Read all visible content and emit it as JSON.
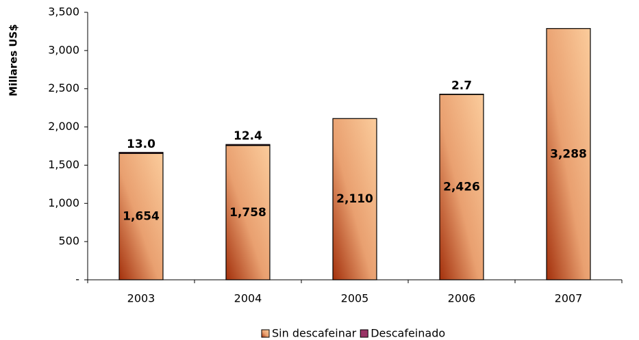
{
  "chart_data": {
    "type": "stacked_bar",
    "y_label": "Millares US$",
    "categories": [
      "2003",
      "2004",
      "2005",
      "2006",
      "2007"
    ],
    "series": [
      {
        "name": "Sin descafeinar",
        "color": "#f9c590",
        "values": [
          1654,
          1758,
          2110,
          2426,
          3288
        ],
        "value_labels": [
          "1,654",
          "1,758",
          "2,110",
          "2,426",
          "3,288"
        ]
      },
      {
        "name": "Descafeinado",
        "color": "#993366",
        "values": [
          13.0,
          12.4,
          null,
          2.7,
          null
        ],
        "value_labels": [
          "13.0",
          "12.4",
          null,
          "2.7",
          null
        ]
      }
    ],
    "ylim": [
      0,
      3500
    ],
    "yticks": [
      {
        "value": 0,
        "label": "-"
      },
      500,
      {
        "value": 1000,
        "label": "1,000"
      },
      {
        "value": 1500,
        "label": "1,500"
      },
      {
        "value": 2000,
        "label": "2,000"
      },
      {
        "value": 2500,
        "label": "2,500"
      },
      {
        "value": 3000,
        "label": "3,000"
      },
      {
        "value": 3500,
        "label": "3,500"
      }
    ],
    "legend": "bottom",
    "grid": false
  }
}
